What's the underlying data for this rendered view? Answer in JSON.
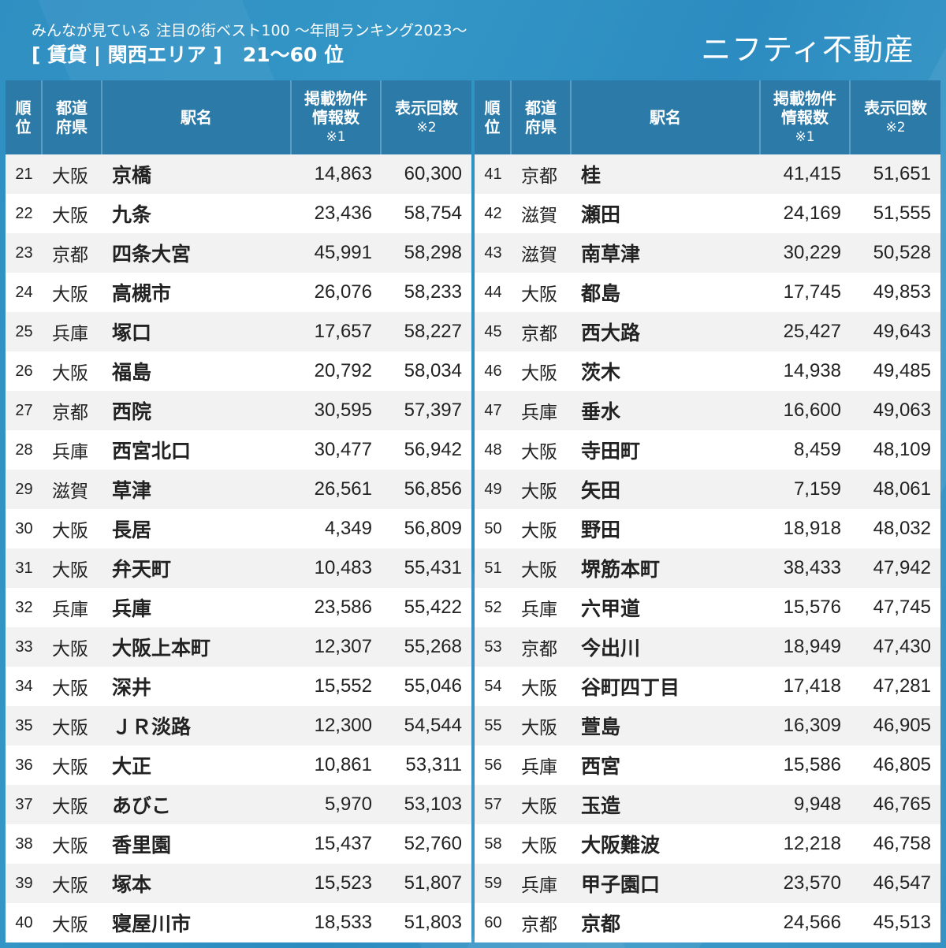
{
  "header": {
    "subtitle": "みんなが見ている 注目の街ベスト100 〜年間ランキング2023〜",
    "category": "[ 賃貸 | 関西エリア ]",
    "range": "21〜60 位",
    "brand": "ニフティ不動産"
  },
  "columns": {
    "rank": "順\n位",
    "rank_line1": "順",
    "rank_line2": "位",
    "pref_line1": "都道",
    "pref_line2": "府県",
    "station": "駅名",
    "listings_line1": "掲載物件",
    "listings_line2": "情報数",
    "listings_note": "※1",
    "views": "表示回数",
    "views_note": "※2"
  },
  "left_rows": [
    {
      "rank": "21",
      "pref": "大阪",
      "station": "京橋",
      "listings": "14,863",
      "views": "60,300"
    },
    {
      "rank": "22",
      "pref": "大阪",
      "station": "九条",
      "listings": "23,436",
      "views": "58,754"
    },
    {
      "rank": "23",
      "pref": "京都",
      "station": "四条大宮",
      "listings": "45,991",
      "views": "58,298"
    },
    {
      "rank": "24",
      "pref": "大阪",
      "station": "高槻市",
      "listings": "26,076",
      "views": "58,233"
    },
    {
      "rank": "25",
      "pref": "兵庫",
      "station": "塚口",
      "listings": "17,657",
      "views": "58,227"
    },
    {
      "rank": "26",
      "pref": "大阪",
      "station": "福島",
      "listings": "20,792",
      "views": "58,034"
    },
    {
      "rank": "27",
      "pref": "京都",
      "station": "西院",
      "listings": "30,595",
      "views": "57,397"
    },
    {
      "rank": "28",
      "pref": "兵庫",
      "station": "西宮北口",
      "listings": "30,477",
      "views": "56,942"
    },
    {
      "rank": "29",
      "pref": "滋賀",
      "station": "草津",
      "listings": "26,561",
      "views": "56,856"
    },
    {
      "rank": "30",
      "pref": "大阪",
      "station": "長居",
      "listings": "4,349",
      "views": "56,809"
    },
    {
      "rank": "31",
      "pref": "大阪",
      "station": "弁天町",
      "listings": "10,483",
      "views": "55,431"
    },
    {
      "rank": "32",
      "pref": "兵庫",
      "station": "兵庫",
      "listings": "23,586",
      "views": "55,422"
    },
    {
      "rank": "33",
      "pref": "大阪",
      "station": "大阪上本町",
      "listings": "12,307",
      "views": "55,268"
    },
    {
      "rank": "34",
      "pref": "大阪",
      "station": "深井",
      "listings": "15,552",
      "views": "55,046"
    },
    {
      "rank": "35",
      "pref": "大阪",
      "station": "ＪＲ淡路",
      "listings": "12,300",
      "views": "54,544"
    },
    {
      "rank": "36",
      "pref": "大阪",
      "station": "大正",
      "listings": "10,861",
      "views": "53,311"
    },
    {
      "rank": "37",
      "pref": "大阪",
      "station": "あびこ",
      "listings": "5,970",
      "views": "53,103"
    },
    {
      "rank": "38",
      "pref": "大阪",
      "station": "香里園",
      "listings": "15,437",
      "views": "52,760"
    },
    {
      "rank": "39",
      "pref": "大阪",
      "station": "塚本",
      "listings": "15,523",
      "views": "51,807"
    },
    {
      "rank": "40",
      "pref": "大阪",
      "station": "寝屋川市",
      "listings": "18,533",
      "views": "51,803"
    }
  ],
  "right_rows": [
    {
      "rank": "41",
      "pref": "京都",
      "station": "桂",
      "listings": "41,415",
      "views": "51,651"
    },
    {
      "rank": "42",
      "pref": "滋賀",
      "station": "瀬田",
      "listings": "24,169",
      "views": "51,555"
    },
    {
      "rank": "43",
      "pref": "滋賀",
      "station": "南草津",
      "listings": "30,229",
      "views": "50,528"
    },
    {
      "rank": "44",
      "pref": "大阪",
      "station": "都島",
      "listings": "17,745",
      "views": "49,853"
    },
    {
      "rank": "45",
      "pref": "京都",
      "station": "西大路",
      "listings": "25,427",
      "views": "49,643"
    },
    {
      "rank": "46",
      "pref": "大阪",
      "station": "茨木",
      "listings": "14,938",
      "views": "49,485"
    },
    {
      "rank": "47",
      "pref": "兵庫",
      "station": "垂水",
      "listings": "16,600",
      "views": "49,063"
    },
    {
      "rank": "48",
      "pref": "大阪",
      "station": "寺田町",
      "listings": "8,459",
      "views": "48,109"
    },
    {
      "rank": "49",
      "pref": "大阪",
      "station": "矢田",
      "listings": "7,159",
      "views": "48,061"
    },
    {
      "rank": "50",
      "pref": "大阪",
      "station": "野田",
      "listings": "18,918",
      "views": "48,032"
    },
    {
      "rank": "51",
      "pref": "大阪",
      "station": "堺筋本町",
      "listings": "38,433",
      "views": "47,942"
    },
    {
      "rank": "52",
      "pref": "兵庫",
      "station": "六甲道",
      "listings": "15,576",
      "views": "47,745"
    },
    {
      "rank": "53",
      "pref": "京都",
      "station": "今出川",
      "listings": "18,949",
      "views": "47,430"
    },
    {
      "rank": "54",
      "pref": "大阪",
      "station": "谷町四丁目",
      "listings": "17,418",
      "views": "47,281"
    },
    {
      "rank": "55",
      "pref": "大阪",
      "station": "萱島",
      "listings": "16,309",
      "views": "46,905"
    },
    {
      "rank": "56",
      "pref": "兵庫",
      "station": "西宮",
      "listings": "15,586",
      "views": "46,805"
    },
    {
      "rank": "57",
      "pref": "大阪",
      "station": "玉造",
      "listings": "9,948",
      "views": "46,765"
    },
    {
      "rank": "58",
      "pref": "大阪",
      "station": "大阪難波",
      "listings": "12,218",
      "views": "46,758"
    },
    {
      "rank": "59",
      "pref": "兵庫",
      "station": "甲子園口",
      "listings": "23,570",
      "views": "46,547"
    },
    {
      "rank": "60",
      "pref": "京都",
      "station": "京都",
      "listings": "24,566",
      "views": "45,513"
    }
  ],
  "colors": {
    "background": "#3093c4",
    "header_cell": "#2b7aa8",
    "row_odd": "#f2f2f2",
    "row_even": "#ffffff",
    "text": "#222222"
  }
}
